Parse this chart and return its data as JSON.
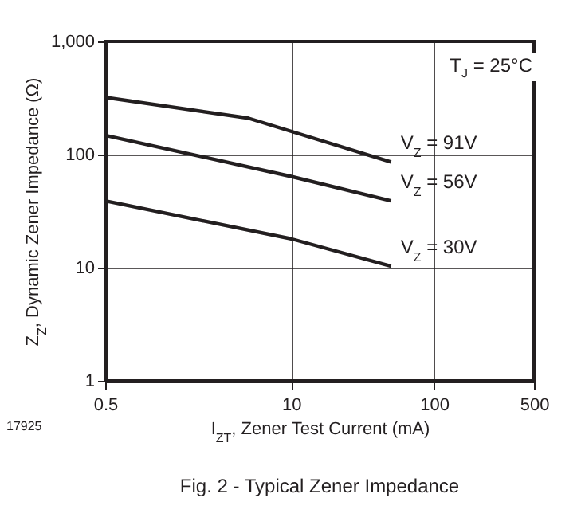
{
  "chart_data": {
    "type": "line",
    "title": "Fig. 2 - Typical Zener Impedance",
    "xlabel": "I$_{ZT}$, Zener Test Current (mA)",
    "ylabel": "Z$_{Z}$, Dynamic Zener Impedance (Ω)",
    "annotations": [
      "T$_{J}$ = 25°C",
      "17925"
    ],
    "series": [
      {
        "name": "V$_{Z}$ = 91V",
        "color": "#231f20",
        "x": [
          0.5,
          5,
          50
        ],
        "values": [
          320,
          210,
          86
        ]
      },
      {
        "name": "V$_{Z}$ = 56V",
        "color": "#231f20",
        "x": [
          0.5,
          10,
          50
        ],
        "values": [
          148,
          64,
          39
        ]
      },
      {
        "name": "V$_{Z}$ = 30V",
        "color": "#231f20",
        "x": [
          0.5,
          10,
          50
        ],
        "values": [
          39,
          18,
          10.3
        ]
      }
    ],
    "log": "xy",
    "grid": true,
    "xlim": [
      0.5,
      500
    ],
    "ylim": [
      1,
      1000
    ],
    "xticks": [
      0.5,
      10,
      100,
      500
    ],
    "yticks": [
      1,
      10,
      100,
      {
        "value": 1000,
        "label": "1,000"
      }
    ],
    "line_style": "solid",
    "marker": "none",
    "legend": false
  }
}
